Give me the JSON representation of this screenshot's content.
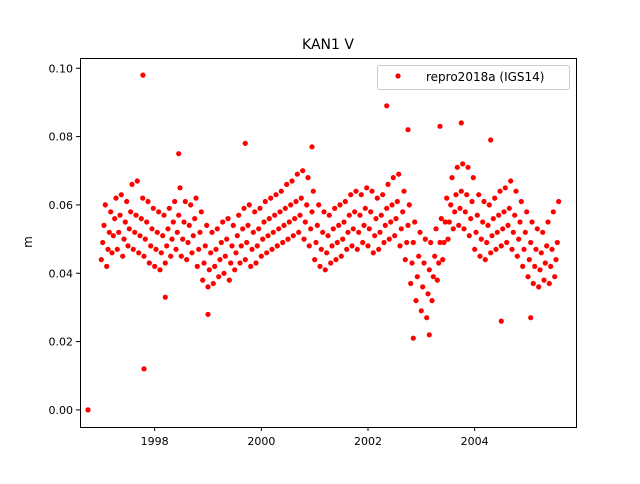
{
  "chart_data": {
    "type": "scatter",
    "title": "KAN1 V",
    "xlabel": "",
    "ylabel": "m",
    "xlim": [
      1996.6,
      2005.9
    ],
    "ylim": [
      -0.005,
      0.103
    ],
    "xticks": [
      1998,
      2000,
      2002,
      2004
    ],
    "xtick_labels": [
      "1998",
      "2000",
      "2002",
      "2004"
    ],
    "yticks": [
      0.0,
      0.02,
      0.04,
      0.06,
      0.08,
      0.1
    ],
    "ytick_labels": [
      "0.00",
      "0.02",
      "0.04",
      "0.06",
      "0.08",
      "0.10"
    ],
    "grid": false,
    "legend": {
      "placement": "top-right",
      "entries": [
        "repro2018a (IGS14)"
      ]
    },
    "series": [
      {
        "name": "repro2018a (IGS14)",
        "color": "#ff0000",
        "samples_by_time": [
          [
            1997.0,
            [
              0.044,
              0.049,
              0.054,
              0.06
            ]
          ],
          [
            1997.1,
            [
              0.042,
              0.047,
              0.052,
              0.058
            ]
          ],
          [
            1997.2,
            [
              0.046,
              0.051,
              0.056,
              0.062
            ]
          ],
          [
            1997.3,
            [
              0.047,
              0.052,
              0.057,
              0.063
            ]
          ],
          [
            1997.4,
            [
              0.045,
              0.05,
              0.055,
              0.061
            ]
          ],
          [
            1997.5,
            [
              0.048,
              0.053,
              0.058,
              0.066
            ]
          ],
          [
            1997.6,
            [
              0.047,
              0.052,
              0.057,
              0.067
            ]
          ],
          [
            1997.7,
            [
              0.046,
              0.051,
              0.056,
              0.062
            ]
          ],
          [
            1997.8,
            [
              0.045,
              0.05,
              0.055,
              0.061
            ]
          ],
          [
            1997.9,
            [
              0.043,
              0.048,
              0.053,
              0.059
            ]
          ],
          [
            1998.0,
            [
              0.042,
              0.047,
              0.052,
              0.058
            ]
          ],
          [
            1998.1,
            [
              0.041,
              0.046,
              0.051,
              0.057
            ]
          ],
          [
            1998.2,
            [
              0.043,
              0.048,
              0.053,
              0.059
            ]
          ],
          [
            1998.3,
            [
              0.045,
              0.05,
              0.055,
              0.061
            ]
          ],
          [
            1998.4,
            [
              0.047,
              0.052,
              0.057,
              0.065
            ]
          ],
          [
            1998.5,
            [
              0.045,
              0.05,
              0.055,
              0.061
            ]
          ],
          [
            1998.6,
            [
              0.044,
              0.049,
              0.054,
              0.06
            ]
          ],
          [
            1998.7,
            [
              0.046,
              0.051,
              0.056,
              0.062
            ]
          ],
          [
            1998.8,
            [
              0.042,
              0.047,
              0.052,
              0.058
            ]
          ],
          [
            1998.9,
            [
              0.038,
              0.043,
              0.048,
              0.054
            ]
          ],
          [
            1999.0,
            [
              0.036,
              0.041,
              0.046,
              0.052
            ]
          ],
          [
            1999.1,
            [
              0.037,
              0.042,
              0.047,
              0.053
            ]
          ],
          [
            1999.2,
            [
              0.039,
              0.044,
              0.049,
              0.055
            ]
          ],
          [
            1999.3,
            [
              0.04,
              0.045,
              0.05,
              0.056
            ]
          ],
          [
            1999.4,
            [
              0.038,
              0.043,
              0.048,
              0.054
            ]
          ],
          [
            1999.5,
            [
              0.041,
              0.046,
              0.051,
              0.057
            ]
          ],
          [
            1999.6,
            [
              0.043,
              0.048,
              0.053,
              0.059
            ]
          ],
          [
            1999.7,
            [
              0.044,
              0.049,
              0.054,
              0.06
            ]
          ],
          [
            1999.8,
            [
              0.042,
              0.047,
              0.052,
              0.058
            ]
          ],
          [
            1999.9,
            [
              0.043,
              0.048,
              0.053,
              0.059
            ]
          ],
          [
            2000.0,
            [
              0.045,
              0.05,
              0.055,
              0.061
            ]
          ],
          [
            2000.1,
            [
              0.046,
              0.051,
              0.056,
              0.062
            ]
          ],
          [
            2000.2,
            [
              0.047,
              0.052,
              0.057,
              0.063
            ]
          ],
          [
            2000.3,
            [
              0.048,
              0.053,
              0.058,
              0.064
            ]
          ],
          [
            2000.4,
            [
              0.049,
              0.054,
              0.059,
              0.066
            ]
          ],
          [
            2000.5,
            [
              0.05,
              0.055,
              0.06,
              0.067
            ]
          ],
          [
            2000.6,
            [
              0.051,
              0.056,
              0.061,
              0.069
            ]
          ],
          [
            2000.7,
            [
              0.052,
              0.057,
              0.062,
              0.07
            ]
          ],
          [
            2000.8,
            [
              0.05,
              0.055,
              0.06,
              0.068
            ]
          ],
          [
            2000.9,
            [
              0.048,
              0.053,
              0.058,
              0.064
            ]
          ],
          [
            2001.0,
            [
              0.044,
              0.049,
              0.054,
              0.06
            ]
          ],
          [
            2001.1,
            [
              0.042,
              0.047,
              0.052,
              0.058
            ]
          ],
          [
            2001.2,
            [
              0.041,
              0.046,
              0.051,
              0.057
            ]
          ],
          [
            2001.3,
            [
              0.043,
              0.048,
              0.053,
              0.059
            ]
          ],
          [
            2001.4,
            [
              0.044,
              0.049,
              0.054,
              0.06
            ]
          ],
          [
            2001.5,
            [
              0.045,
              0.05,
              0.055,
              0.061
            ]
          ],
          [
            2001.6,
            [
              0.047,
              0.052,
              0.057,
              0.063
            ]
          ],
          [
            2001.7,
            [
              0.048,
              0.053,
              0.058,
              0.064
            ]
          ],
          [
            2001.8,
            [
              0.047,
              0.052,
              0.057,
              0.063
            ]
          ],
          [
            2001.9,
            [
              0.049,
              0.054,
              0.059,
              0.065
            ]
          ],
          [
            2002.0,
            [
              0.048,
              0.053,
              0.058,
              0.064
            ]
          ],
          [
            2002.1,
            [
              0.046,
              0.051,
              0.056,
              0.062
            ]
          ],
          [
            2002.2,
            [
              0.047,
              0.052,
              0.057,
              0.063
            ]
          ],
          [
            2002.3,
            [
              0.049,
              0.054,
              0.059,
              0.066
            ]
          ],
          [
            2002.4,
            [
              0.05,
              0.055,
              0.06,
              0.068
            ]
          ],
          [
            2002.5,
            [
              0.051,
              0.056,
              0.061,
              0.069
            ]
          ],
          [
            2002.6,
            [
              0.048,
              0.053,
              0.058,
              0.064
            ]
          ],
          [
            2002.7,
            [
              0.044,
              0.049,
              0.054,
              0.06
            ]
          ],
          [
            2002.8,
            [
              0.037,
              0.043,
              0.049,
              0.055
            ]
          ],
          [
            2002.9,
            [
              0.032,
              0.039,
              0.045,
              0.052
            ]
          ],
          [
            2003.0,
            [
              0.029,
              0.036,
              0.043,
              0.05
            ]
          ],
          [
            2003.1,
            [
              0.027,
              0.034,
              0.041,
              0.049
            ]
          ],
          [
            2003.2,
            [
              0.032,
              0.039,
              0.045,
              0.053
            ]
          ],
          [
            2003.3,
            [
              0.038,
              0.043,
              0.049,
              0.056
            ]
          ],
          [
            2003.4,
            [
              0.044,
              0.049,
              0.055,
              0.062
            ]
          ],
          [
            2003.5,
            [
              0.05,
              0.055,
              0.06,
              0.068
            ]
          ],
          [
            2003.6,
            [
              0.053,
              0.058,
              0.063,
              0.071
            ]
          ],
          [
            2003.7,
            [
              0.054,
              0.059,
              0.064,
              0.072
            ]
          ],
          [
            2003.8,
            [
              0.053,
              0.058,
              0.063,
              0.071
            ]
          ],
          [
            2003.9,
            [
              0.051,
              0.056,
              0.061,
              0.068
            ]
          ],
          [
            2004.0,
            [
              0.047,
              0.052,
              0.057,
              0.063
            ]
          ],
          [
            2004.1,
            [
              0.045,
              0.05,
              0.055,
              0.061
            ]
          ],
          [
            2004.2,
            [
              0.044,
              0.049,
              0.054,
              0.06
            ]
          ],
          [
            2004.3,
            [
              0.046,
              0.051,
              0.056,
              0.062
            ]
          ],
          [
            2004.4,
            [
              0.047,
              0.052,
              0.057,
              0.064
            ]
          ],
          [
            2004.5,
            [
              0.048,
              0.053,
              0.058,
              0.065
            ]
          ],
          [
            2004.6,
            [
              0.049,
              0.054,
              0.059,
              0.067
            ]
          ],
          [
            2004.7,
            [
              0.047,
              0.052,
              0.057,
              0.064
            ]
          ],
          [
            2004.8,
            [
              0.045,
              0.05,
              0.055,
              0.061
            ]
          ],
          [
            2004.9,
            [
              0.042,
              0.047,
              0.052,
              0.058
            ]
          ],
          [
            2005.0,
            [
              0.039,
              0.044,
              0.049,
              0.055
            ]
          ],
          [
            2005.1,
            [
              0.037,
              0.042,
              0.047,
              0.053
            ]
          ],
          [
            2005.2,
            [
              0.036,
              0.041,
              0.046,
              0.052
            ]
          ],
          [
            2005.3,
            [
              0.038,
              0.043,
              0.048,
              0.055
            ]
          ],
          [
            2005.4,
            [
              0.037,
              0.042,
              0.047,
              0.058
            ]
          ],
          [
            2005.5,
            [
              0.039,
              0.044,
              0.049,
              0.061
            ]
          ]
        ],
        "outliers": [
          [
            1996.75,
            0.0
          ],
          [
            1997.78,
            0.098
          ],
          [
            1997.8,
            0.012
          ],
          [
            1998.2,
            0.033
          ],
          [
            1998.45,
            0.075
          ],
          [
            1999.0,
            0.028
          ],
          [
            1999.7,
            0.078
          ],
          [
            2000.95,
            0.077
          ],
          [
            2002.35,
            0.089
          ],
          [
            2002.75,
            0.082
          ],
          [
            2002.85,
            0.021
          ],
          [
            2003.15,
            0.022
          ],
          [
            2003.35,
            0.083
          ],
          [
            2003.75,
            0.084
          ],
          [
            2004.3,
            0.079
          ],
          [
            2004.5,
            0.026
          ],
          [
            2005.05,
            0.027
          ]
        ]
      }
    ]
  }
}
